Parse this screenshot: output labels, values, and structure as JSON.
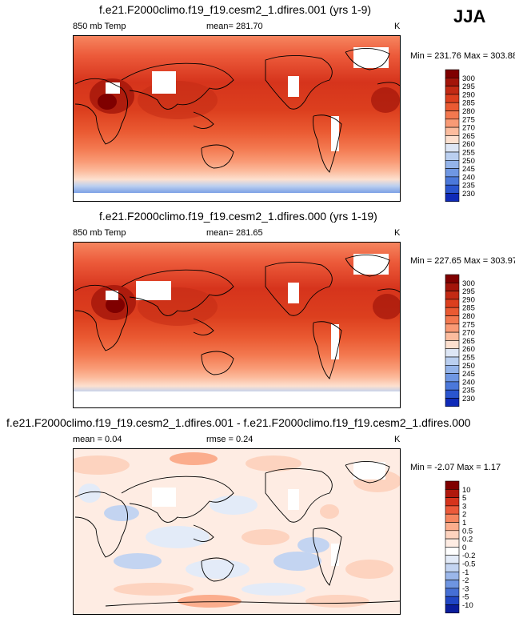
{
  "season": "JJA",
  "units": "K",
  "panels": [
    {
      "title": "f.e21.F2000climo.f19_f19.cesm2_1.dfires.001 (yrs 1-9)",
      "left_label": "850 mb Temp",
      "center_label": "mean= 281.70",
      "right_label": "K",
      "minmax": "Min = 231.76 Max = 303.88",
      "colorbar": {
        "ticks": [
          "300",
          "295",
          "290",
          "285",
          "280",
          "275",
          "270",
          "265",
          "260",
          "255",
          "250",
          "245",
          "240",
          "235",
          "230"
        ],
        "colors": [
          "#7f0000",
          "#a3150a",
          "#c22a14",
          "#dc3f1e",
          "#ea5a32",
          "#f3784f",
          "#f99a75",
          "#fcbc9e",
          "#fde0cf",
          "#dde6f5",
          "#bacff0",
          "#94b4ea",
          "#6f97e3",
          "#4b78da",
          "#2a55cf",
          "#0f2ab8"
        ]
      }
    },
    {
      "title": "f.e21.F2000climo.f19_f19.cesm2_1.dfires.000 (yrs 1-19)",
      "left_label": "850 mb Temp",
      "center_label": "mean= 281.65",
      "right_label": "K",
      "minmax": "Min = 227.65 Max = 303.97",
      "colorbar": {
        "ticks": [
          "300",
          "295",
          "290",
          "285",
          "280",
          "275",
          "270",
          "265",
          "260",
          "255",
          "250",
          "245",
          "240",
          "235",
          "230"
        ],
        "colors": [
          "#7f0000",
          "#a3150a",
          "#c22a14",
          "#dc3f1e",
          "#ea5a32",
          "#f3784f",
          "#f99a75",
          "#fcbc9e",
          "#fde0cf",
          "#dde6f5",
          "#bacff0",
          "#94b4ea",
          "#6f97e3",
          "#4b78da",
          "#2a55cf",
          "#0f2ab8"
        ]
      }
    },
    {
      "title": "f.e21.F2000climo.f19_f19.cesm2_1.dfires.001 - f.e21.F2000climo.f19_f19.cesm2_1.dfires.000",
      "left_label": "mean =   0.04",
      "center_label": "rmse =   0.24",
      "right_label": "K",
      "minmax": "Min =  -2.07 Max =   1.17",
      "colorbar": {
        "ticks": [
          "10",
          "5",
          "3",
          "2",
          "1",
          "0.5",
          "0.2",
          "0",
          "-0.2",
          "-0.5",
          "-1",
          "-2",
          "-3",
          "-5",
          "-10"
        ],
        "colors": [
          "#7f0000",
          "#b0180c",
          "#d6341c",
          "#ec5a3a",
          "#f6855f",
          "#fbad8d",
          "#fdd3bf",
          "#feece3",
          "#ffffff",
          "#e3ebf8",
          "#c3d4f1",
          "#9bb7ea",
          "#6e95e1",
          "#456fd5",
          "#2046c4",
          "#0a1d9c"
        ]
      }
    }
  ],
  "chart_data": [
    {
      "type": "heatmap",
      "title": "f.e21.F2000climo.f19_f19.cesm2_1.dfires.001 (yrs 1-9)",
      "variable": "850 mb Temp",
      "units": "K",
      "mean": 281.7,
      "min": 231.76,
      "max": 303.88,
      "contour_levels": [
        230,
        235,
        240,
        245,
        250,
        255,
        260,
        265,
        270,
        275,
        280,
        285,
        290,
        295,
        300
      ],
      "projection": "global cylindrical equidistant, centered on Pacific",
      "season": "JJA"
    },
    {
      "type": "heatmap",
      "title": "f.e21.F2000climo.f19_f19.cesm2_1.dfires.000 (yrs 1-19)",
      "variable": "850 mb Temp",
      "units": "K",
      "mean": 281.65,
      "min": 227.65,
      "max": 303.97,
      "contour_levels": [
        230,
        235,
        240,
        245,
        250,
        255,
        260,
        265,
        270,
        275,
        280,
        285,
        290,
        295,
        300
      ],
      "projection": "global cylindrical equidistant, centered on Pacific",
      "season": "JJA"
    },
    {
      "type": "heatmap",
      "title": "f.e21.F2000climo.f19_f19.cesm2_1.dfires.001 - f.e21.F2000climo.f19_f19.cesm2_1.dfires.000",
      "units": "K",
      "mean": 0.04,
      "rmse": 0.24,
      "min": -2.07,
      "max": 1.17,
      "contour_levels": [
        -10,
        -5,
        -3,
        -2,
        -1,
        -0.5,
        -0.2,
        0,
        0.2,
        0.5,
        1,
        2,
        3,
        5,
        10
      ],
      "season": "JJA"
    }
  ]
}
